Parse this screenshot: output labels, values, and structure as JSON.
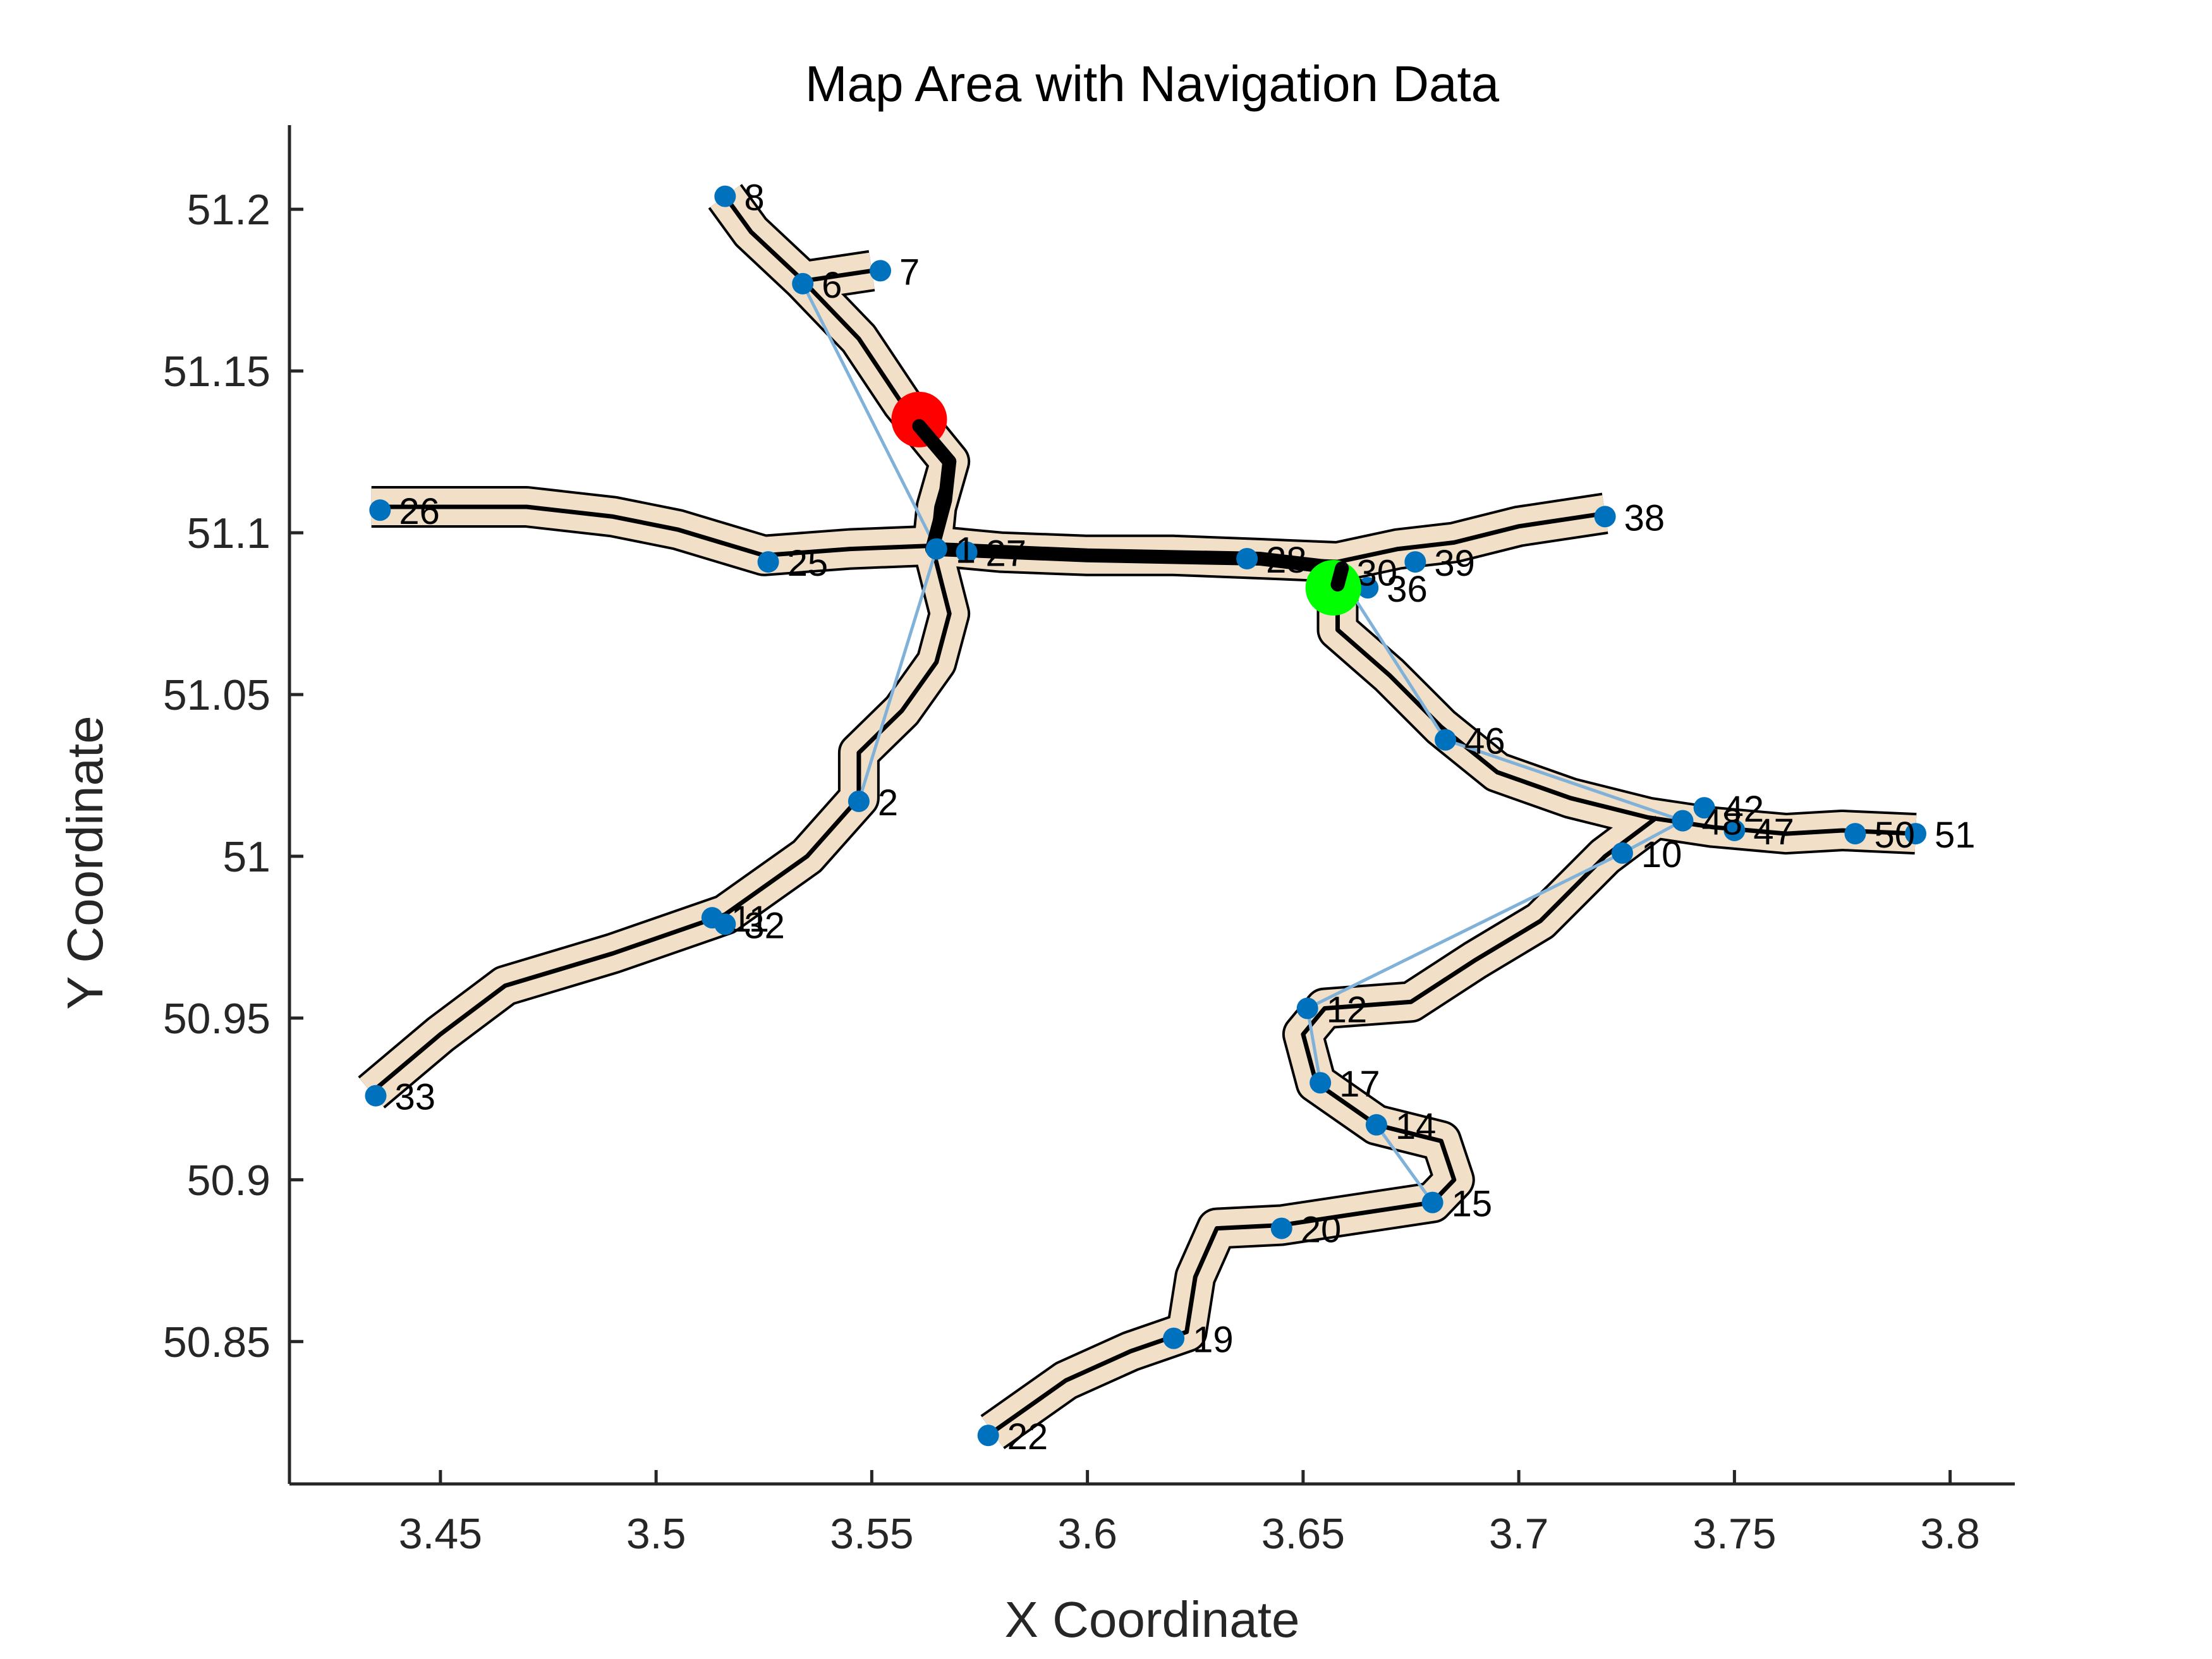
{
  "chart_data": {
    "type": "scatter",
    "title": "Map Area with Navigation Data",
    "xlabel": "X Coordinate",
    "ylabel": "Y Coordinate",
    "xlim": [
      3.415,
      3.815
    ],
    "ylim": [
      50.806,
      51.226
    ],
    "xticks": [
      3.45,
      3.5,
      3.55,
      3.6,
      3.65,
      3.7,
      3.75,
      3.8
    ],
    "xtick_labels": [
      "3.45",
      "3.5",
      "3.55",
      "3.6",
      "3.65",
      "3.7",
      "3.75",
      "3.8"
    ],
    "yticks": [
      50.85,
      50.9,
      50.95,
      51.0,
      51.05,
      51.1,
      51.15,
      51.2
    ],
    "ytick_labels": [
      "50.85",
      "50.9",
      "50.95",
      "51",
      "51.05",
      "51.1",
      "51.15",
      "51.2"
    ],
    "grid": false,
    "colors": {
      "road_fill": "#f2dfc8",
      "road_edge": "#000000",
      "nodes": "#0072bd",
      "network_line": "#7fb1d9",
      "route": "#000000",
      "start": "#ff0000",
      "goal": "#00ff00"
    },
    "roads": [
      [
        [
          3.516,
          51.204
        ],
        [
          3.522,
          51.193
        ],
        [
          3.534,
          51.178
        ],
        [
          3.547,
          51.16
        ],
        [
          3.557,
          51.14
        ],
        [
          3.568,
          51.122
        ],
        [
          3.565,
          51.108
        ],
        [
          3.564,
          51.095
        ]
      ],
      [
        [
          3.535,
          51.178
        ],
        [
          3.55,
          51.181
        ]
      ],
      [
        [
          3.434,
          51.108
        ],
        [
          3.47,
          51.108
        ],
        [
          3.49,
          51.105
        ],
        [
          3.505,
          51.101
        ],
        [
          3.525,
          51.093
        ],
        [
          3.545,
          51.095
        ],
        [
          3.564,
          51.096
        ]
      ],
      [
        [
          3.564,
          51.096
        ],
        [
          3.58,
          51.094
        ],
        [
          3.6,
          51.093
        ],
        [
          3.62,
          51.093
        ],
        [
          3.64,
          51.092
        ],
        [
          3.658,
          51.091
        ],
        [
          3.672,
          51.095
        ],
        [
          3.685,
          51.097
        ],
        [
          3.7,
          51.102
        ],
        [
          3.72,
          51.106
        ]
      ],
      [
        [
          3.564,
          51.096
        ],
        [
          3.568,
          51.075
        ],
        [
          3.565,
          51.06
        ],
        [
          3.557,
          51.045
        ],
        [
          3.547,
          51.032
        ],
        [
          3.547,
          51.018
        ],
        [
          3.535,
          51.0
        ],
        [
          3.516,
          50.982
        ],
        [
          3.49,
          50.97
        ],
        [
          3.465,
          50.96
        ],
        [
          3.45,
          50.945
        ],
        [
          3.434,
          50.927
        ]
      ],
      [
        [
          3.658,
          51.086
        ],
        [
          3.658,
          51.07
        ],
        [
          3.67,
          51.056
        ],
        [
          3.682,
          51.04
        ],
        [
          3.695,
          51.026
        ],
        [
          3.712,
          51.018
        ],
        [
          3.73,
          51.012
        ],
        [
          3.745,
          51.009
        ],
        [
          3.762,
          51.007
        ],
        [
          3.775,
          51.008
        ],
        [
          3.792,
          51.007
        ]
      ],
      [
        [
          3.732,
          51.012
        ],
        [
          3.72,
          51.0
        ],
        [
          3.705,
          50.98
        ],
        [
          3.69,
          50.968
        ],
        [
          3.675,
          50.955
        ],
        [
          3.655,
          50.953
        ],
        [
          3.65,
          50.945
        ],
        [
          3.653,
          50.93
        ],
        [
          3.667,
          50.917
        ],
        [
          3.682,
          50.912
        ],
        [
          3.685,
          50.9
        ],
        [
          3.68,
          50.893
        ],
        [
          3.66,
          50.889
        ],
        [
          3.645,
          50.886
        ],
        [
          3.63,
          50.885
        ],
        [
          3.625,
          50.87
        ],
        [
          3.623,
          50.853
        ],
        [
          3.61,
          50.847
        ],
        [
          3.595,
          50.838
        ],
        [
          3.578,
          50.822
        ]
      ]
    ],
    "route": [
      [
        3.561,
        51.133
      ],
      [
        3.568,
        51.122
      ],
      [
        3.567,
        51.11
      ],
      [
        3.564,
        51.095
      ],
      [
        3.6,
        51.093
      ],
      [
        3.64,
        51.092
      ],
      [
        3.659,
        51.089
      ],
      [
        3.658,
        51.084
      ]
    ],
    "start_point": [
      3.561,
      51.135
    ],
    "goal_point": [
      3.657,
      51.083
    ],
    "nodes": [
      {
        "id": "8",
        "x": 3.516,
        "y": 51.204
      },
      {
        "id": "6",
        "x": 3.534,
        "y": 51.177
      },
      {
        "id": "7",
        "x": 3.552,
        "y": 51.181
      },
      {
        "id": "26",
        "x": 3.436,
        "y": 51.107
      },
      {
        "id": "25",
        "x": 3.526,
        "y": 51.091
      },
      {
        "id": "1",
        "x": 3.565,
        "y": 51.095
      },
      {
        "id": "27",
        "x": 3.572,
        "y": 51.094
      },
      {
        "id": "28",
        "x": 3.637,
        "y": 51.092
      },
      {
        "id": "30",
        "x": 3.658,
        "y": 51.088
      },
      {
        "id": "36",
        "x": 3.665,
        "y": 51.083
      },
      {
        "id": "39",
        "x": 3.676,
        "y": 51.091
      },
      {
        "id": "38",
        "x": 3.72,
        "y": 51.105
      },
      {
        "id": "2",
        "x": 3.547,
        "y": 51.017
      },
      {
        "id": "11",
        "x": 3.513,
        "y": 50.981
      },
      {
        "id": "32",
        "x": 3.516,
        "y": 50.979
      },
      {
        "id": "33",
        "x": 3.435,
        "y": 50.926
      },
      {
        "id": "46",
        "x": 3.683,
        "y": 51.036
      },
      {
        "id": "42",
        "x": 3.743,
        "y": 51.015
      },
      {
        "id": "48",
        "x": 3.738,
        "y": 51.011
      },
      {
        "id": "47",
        "x": 3.75,
        "y": 51.008
      },
      {
        "id": "50",
        "x": 3.778,
        "y": 51.007
      },
      {
        "id": "51",
        "x": 3.792,
        "y": 51.007
      },
      {
        "id": "10",
        "x": 3.724,
        "y": 51.001
      },
      {
        "id": "12",
        "x": 3.651,
        "y": 50.953
      },
      {
        "id": "17",
        "x": 3.654,
        "y": 50.93
      },
      {
        "id": "14",
        "x": 3.667,
        "y": 50.917
      },
      {
        "id": "15",
        "x": 3.68,
        "y": 50.893
      },
      {
        "id": "20",
        "x": 3.645,
        "y": 50.885
      },
      {
        "id": "19",
        "x": 3.62,
        "y": 50.851
      },
      {
        "id": "22",
        "x": 3.577,
        "y": 50.821
      }
    ],
    "node_links": [
      [
        3.534,
        51.177,
        3.565,
        51.095
      ],
      [
        3.565,
        51.095,
        3.547,
        51.017
      ],
      [
        3.658,
        51.088,
        3.683,
        51.036
      ],
      [
        3.683,
        51.036,
        3.738,
        51.011
      ],
      [
        3.738,
        51.011,
        3.724,
        51.001
      ],
      [
        3.724,
        51.001,
        3.651,
        50.953
      ],
      [
        3.651,
        50.953,
        3.654,
        50.93
      ],
      [
        3.667,
        50.917,
        3.68,
        50.893
      ]
    ]
  }
}
